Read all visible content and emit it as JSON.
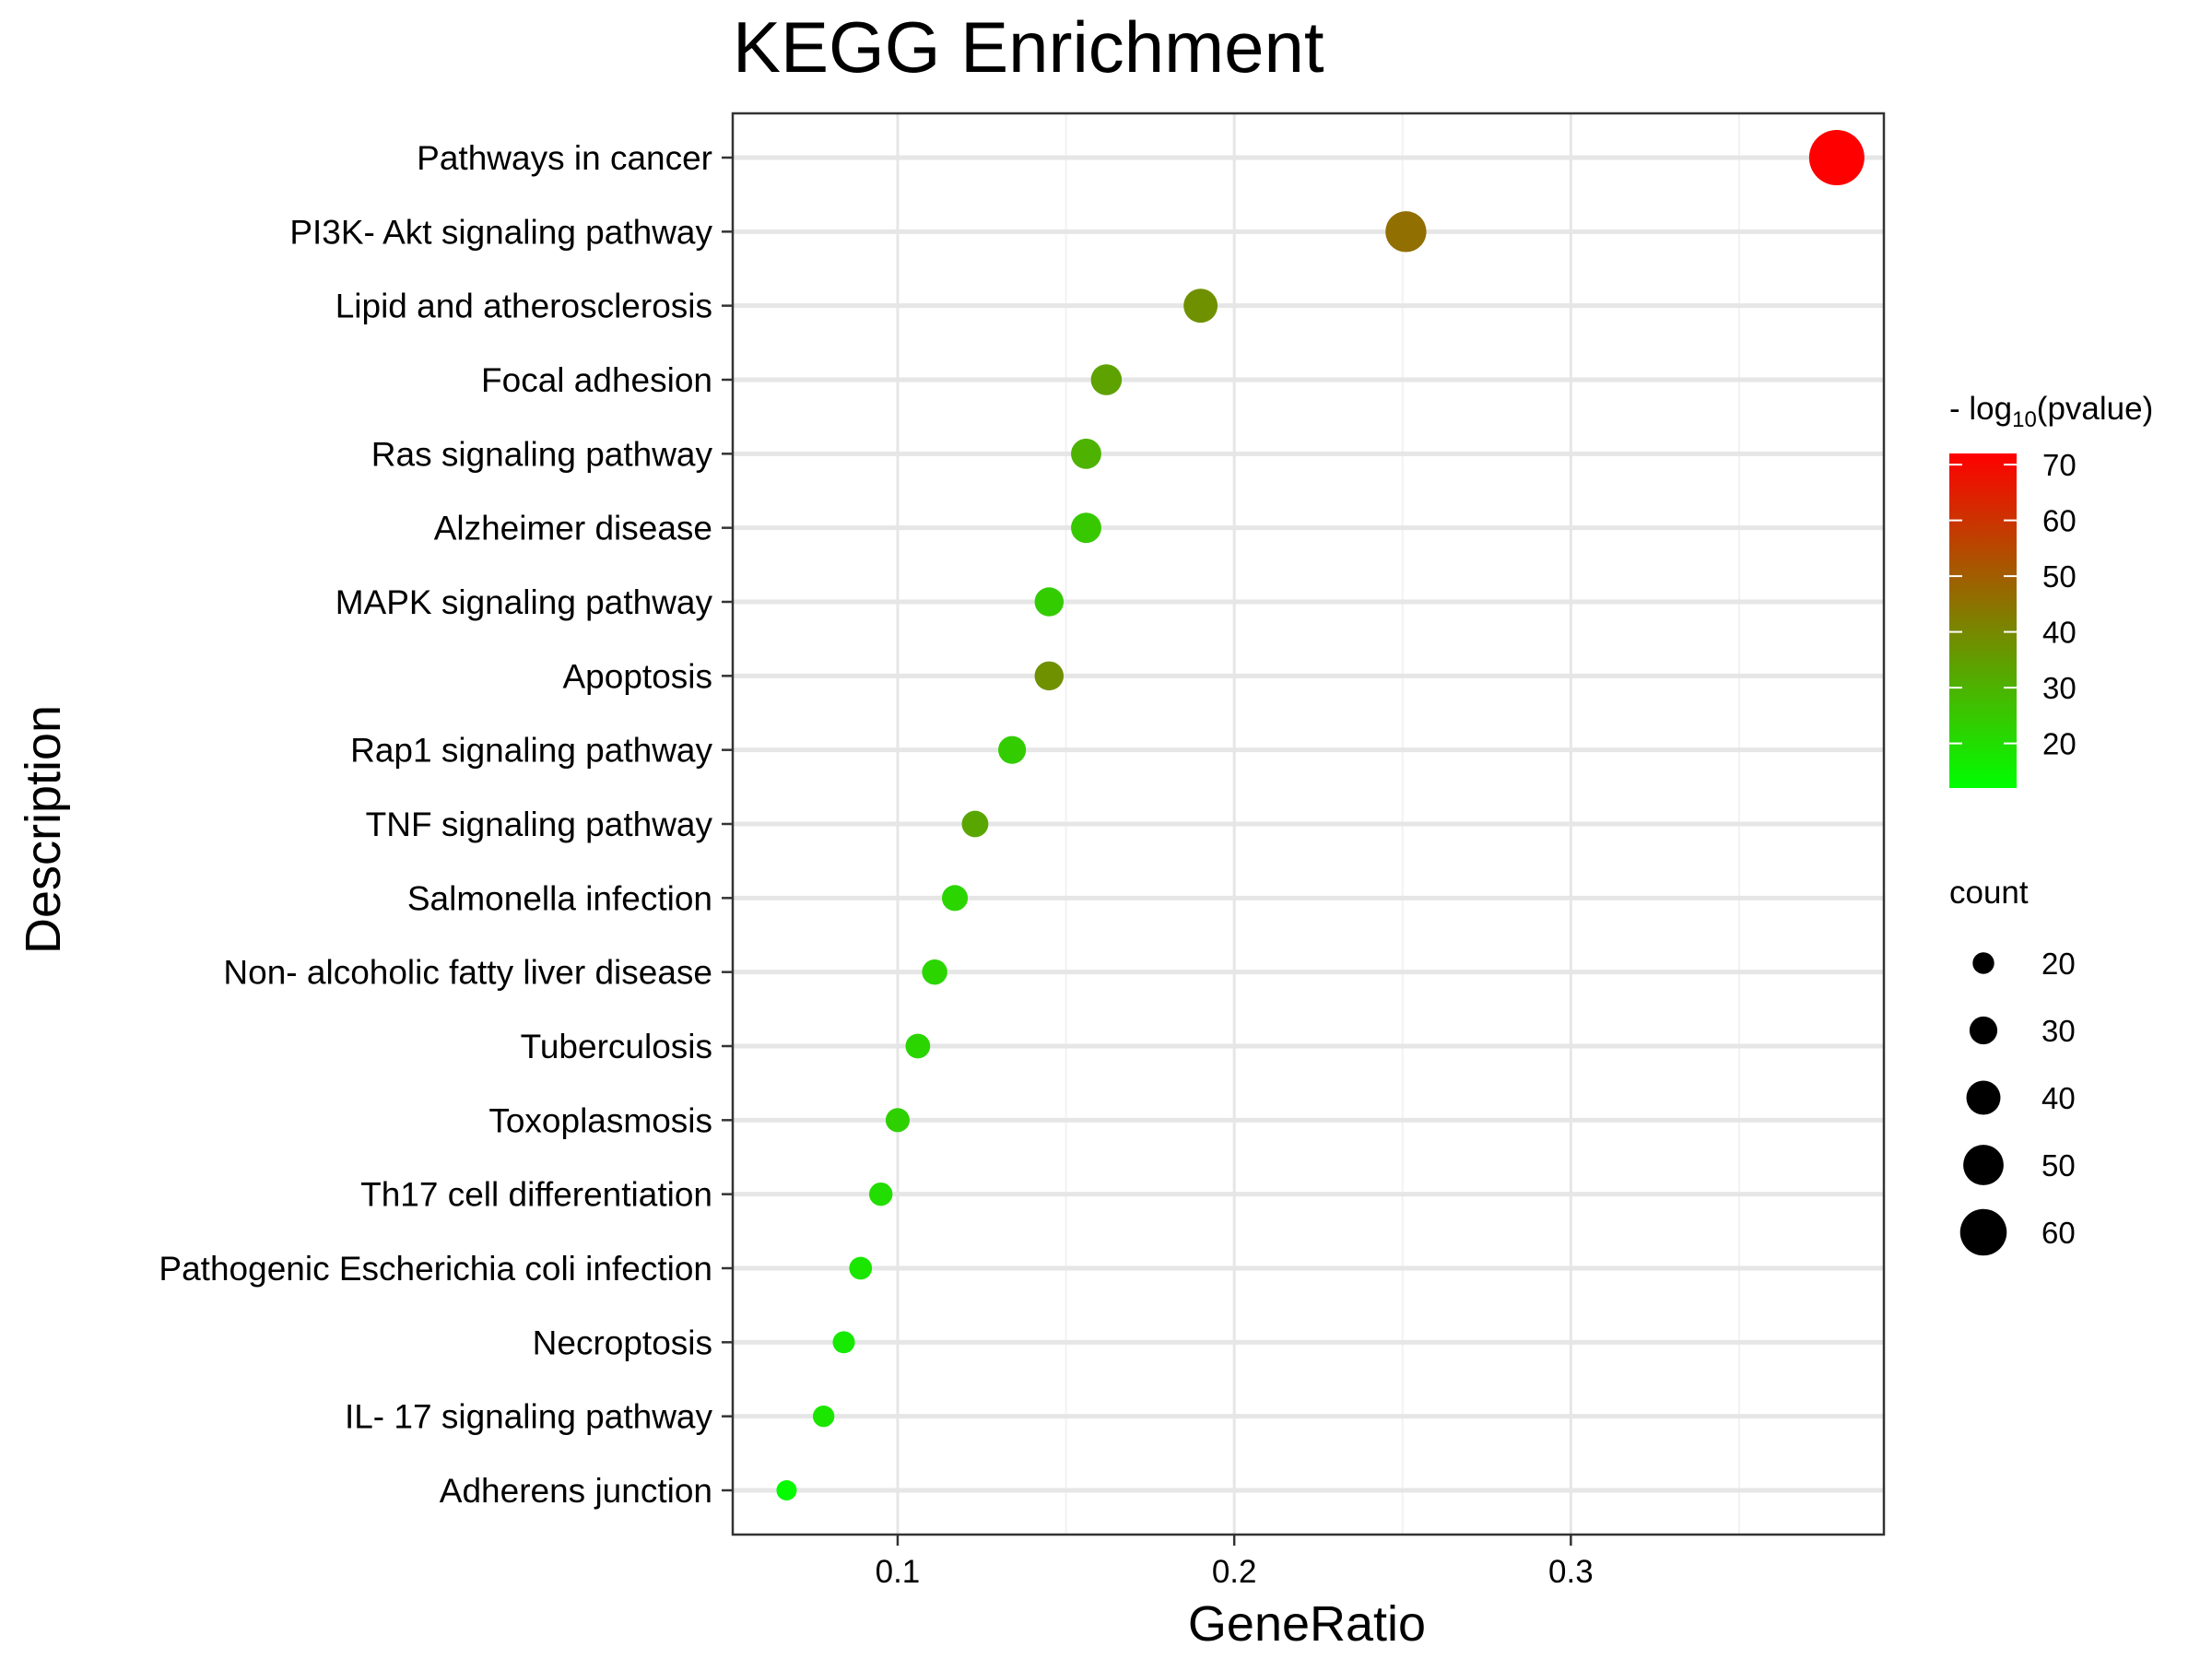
{
  "chart_data": {
    "type": "scatter",
    "title": "KEGG Enrichment",
    "xlabel": "GeneRatio",
    "ylabel": "Description",
    "xlim": [
      0.051,
      0.393
    ],
    "x_ticks": [
      0.1,
      0.2,
      0.3
    ],
    "x_tick_labels": [
      "0.1",
      "0.2",
      "0.3"
    ],
    "grid": true,
    "categories": [
      "Pathways in cancer",
      "PI3K- Akt signaling pathway",
      "Lipid and atherosclerosis",
      "Focal adhesion",
      "Ras signaling pathway",
      "Alzheimer disease",
      "MAPK signaling pathway",
      "Apoptosis",
      "Rap1 signaling pathway",
      "TNF signaling pathway",
      "Salmonella infection",
      "Non- alcoholic fatty liver disease",
      "Tuberculosis",
      "Toxoplasmosis",
      "Th17 cell differentiation",
      "Pathogenic Escherichia coli infection",
      "Necroptosis",
      "IL- 17 signaling pathway",
      "Adherens junction"
    ],
    "x": [
      0.379,
      0.251,
      0.19,
      0.162,
      0.156,
      0.156,
      0.145,
      0.145,
      0.134,
      0.123,
      0.117,
      0.111,
      0.106,
      0.1,
      0.095,
      0.089,
      0.084,
      0.078,
      0.067
    ],
    "count": [
      68,
      45,
      34,
      29,
      28,
      28,
      26,
      26,
      24,
      22,
      21,
      20,
      19,
      18,
      17,
      16,
      15,
      14,
      12
    ],
    "neg_log10_pvalue": [
      72,
      46,
      38,
      34,
      30,
      25,
      24,
      38,
      24,
      33,
      22,
      22,
      22,
      23,
      20,
      18,
      17,
      18,
      13
    ],
    "color_legend": {
      "title_prefix": "- log",
      "title_subscript": "10",
      "title_suffix": "(pvalue)",
      "ticks": [
        70,
        60,
        50,
        40,
        30,
        20
      ],
      "tick_labels": [
        "70",
        "60",
        "50",
        "40",
        "30",
        "20"
      ],
      "range": [
        12,
        72
      ],
      "low_color": "#00FF00",
      "high_color": "#FF0000",
      "position": "right"
    },
    "size_legend": {
      "title": "count",
      "values": [
        20,
        30,
        40,
        50,
        60
      ],
      "labels": [
        "20",
        "30",
        "40",
        "50",
        "60"
      ],
      "position": "right"
    }
  }
}
